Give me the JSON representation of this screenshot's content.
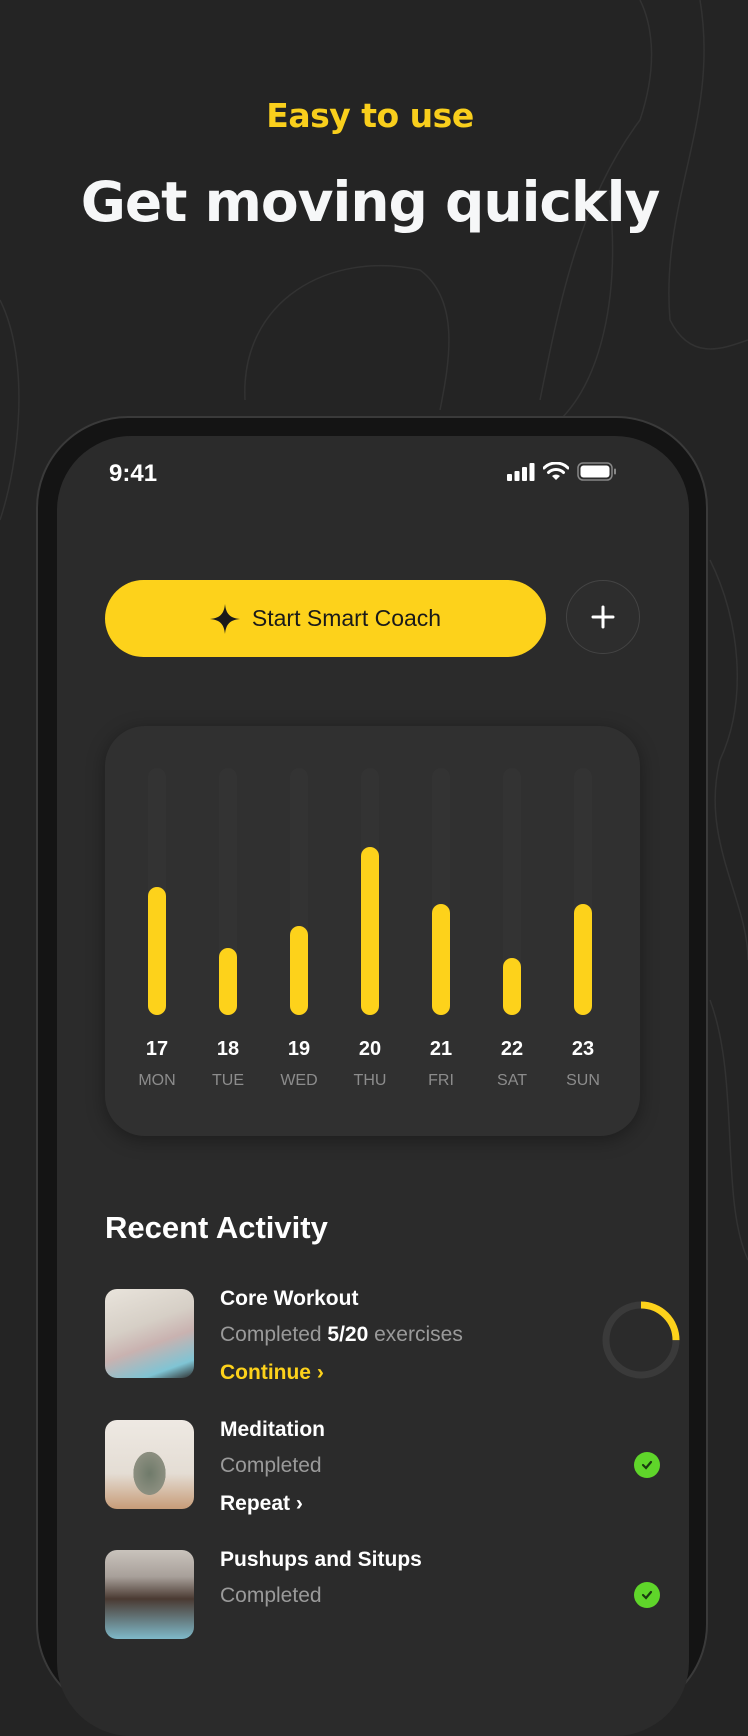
{
  "header": {
    "eyebrow": "Easy to use",
    "headline": "Get moving quickly"
  },
  "status_bar": {
    "time": "9:41",
    "icons": [
      "cellular-signal-icon",
      "wifi-icon",
      "battery-icon"
    ]
  },
  "actions": {
    "smart_coach_label": "Start Smart Coach",
    "smart_coach_icon": "sparkle-icon",
    "add_icon": "plus-icon"
  },
  "colors": {
    "accent": "#fdd21b",
    "success": "#5fd52a",
    "background": "#242424",
    "screen": "#2b2b2b"
  },
  "chart_data": {
    "type": "bar",
    "categories": [
      "17",
      "18",
      "19",
      "20",
      "21",
      "22",
      "23"
    ],
    "day_labels": [
      "MON",
      "TUE",
      "WED",
      "THU",
      "FRI",
      "SAT",
      "SUN"
    ],
    "values": [
      0.52,
      0.27,
      0.36,
      0.68,
      0.45,
      0.23,
      0.45
    ],
    "ylim": [
      0,
      1
    ],
    "grid": false
  },
  "recent": {
    "title": "Recent Activity",
    "items": [
      {
        "title": "Core Workout",
        "status": "Completed",
        "progress_count": "5/20",
        "progress_suffix": "exercises",
        "action": "Continue",
        "progress": 0.25
      },
      {
        "title": "Meditation",
        "status": "Completed",
        "action": "Repeat"
      },
      {
        "title": "Pushups and Situps",
        "status": "Completed"
      }
    ]
  }
}
